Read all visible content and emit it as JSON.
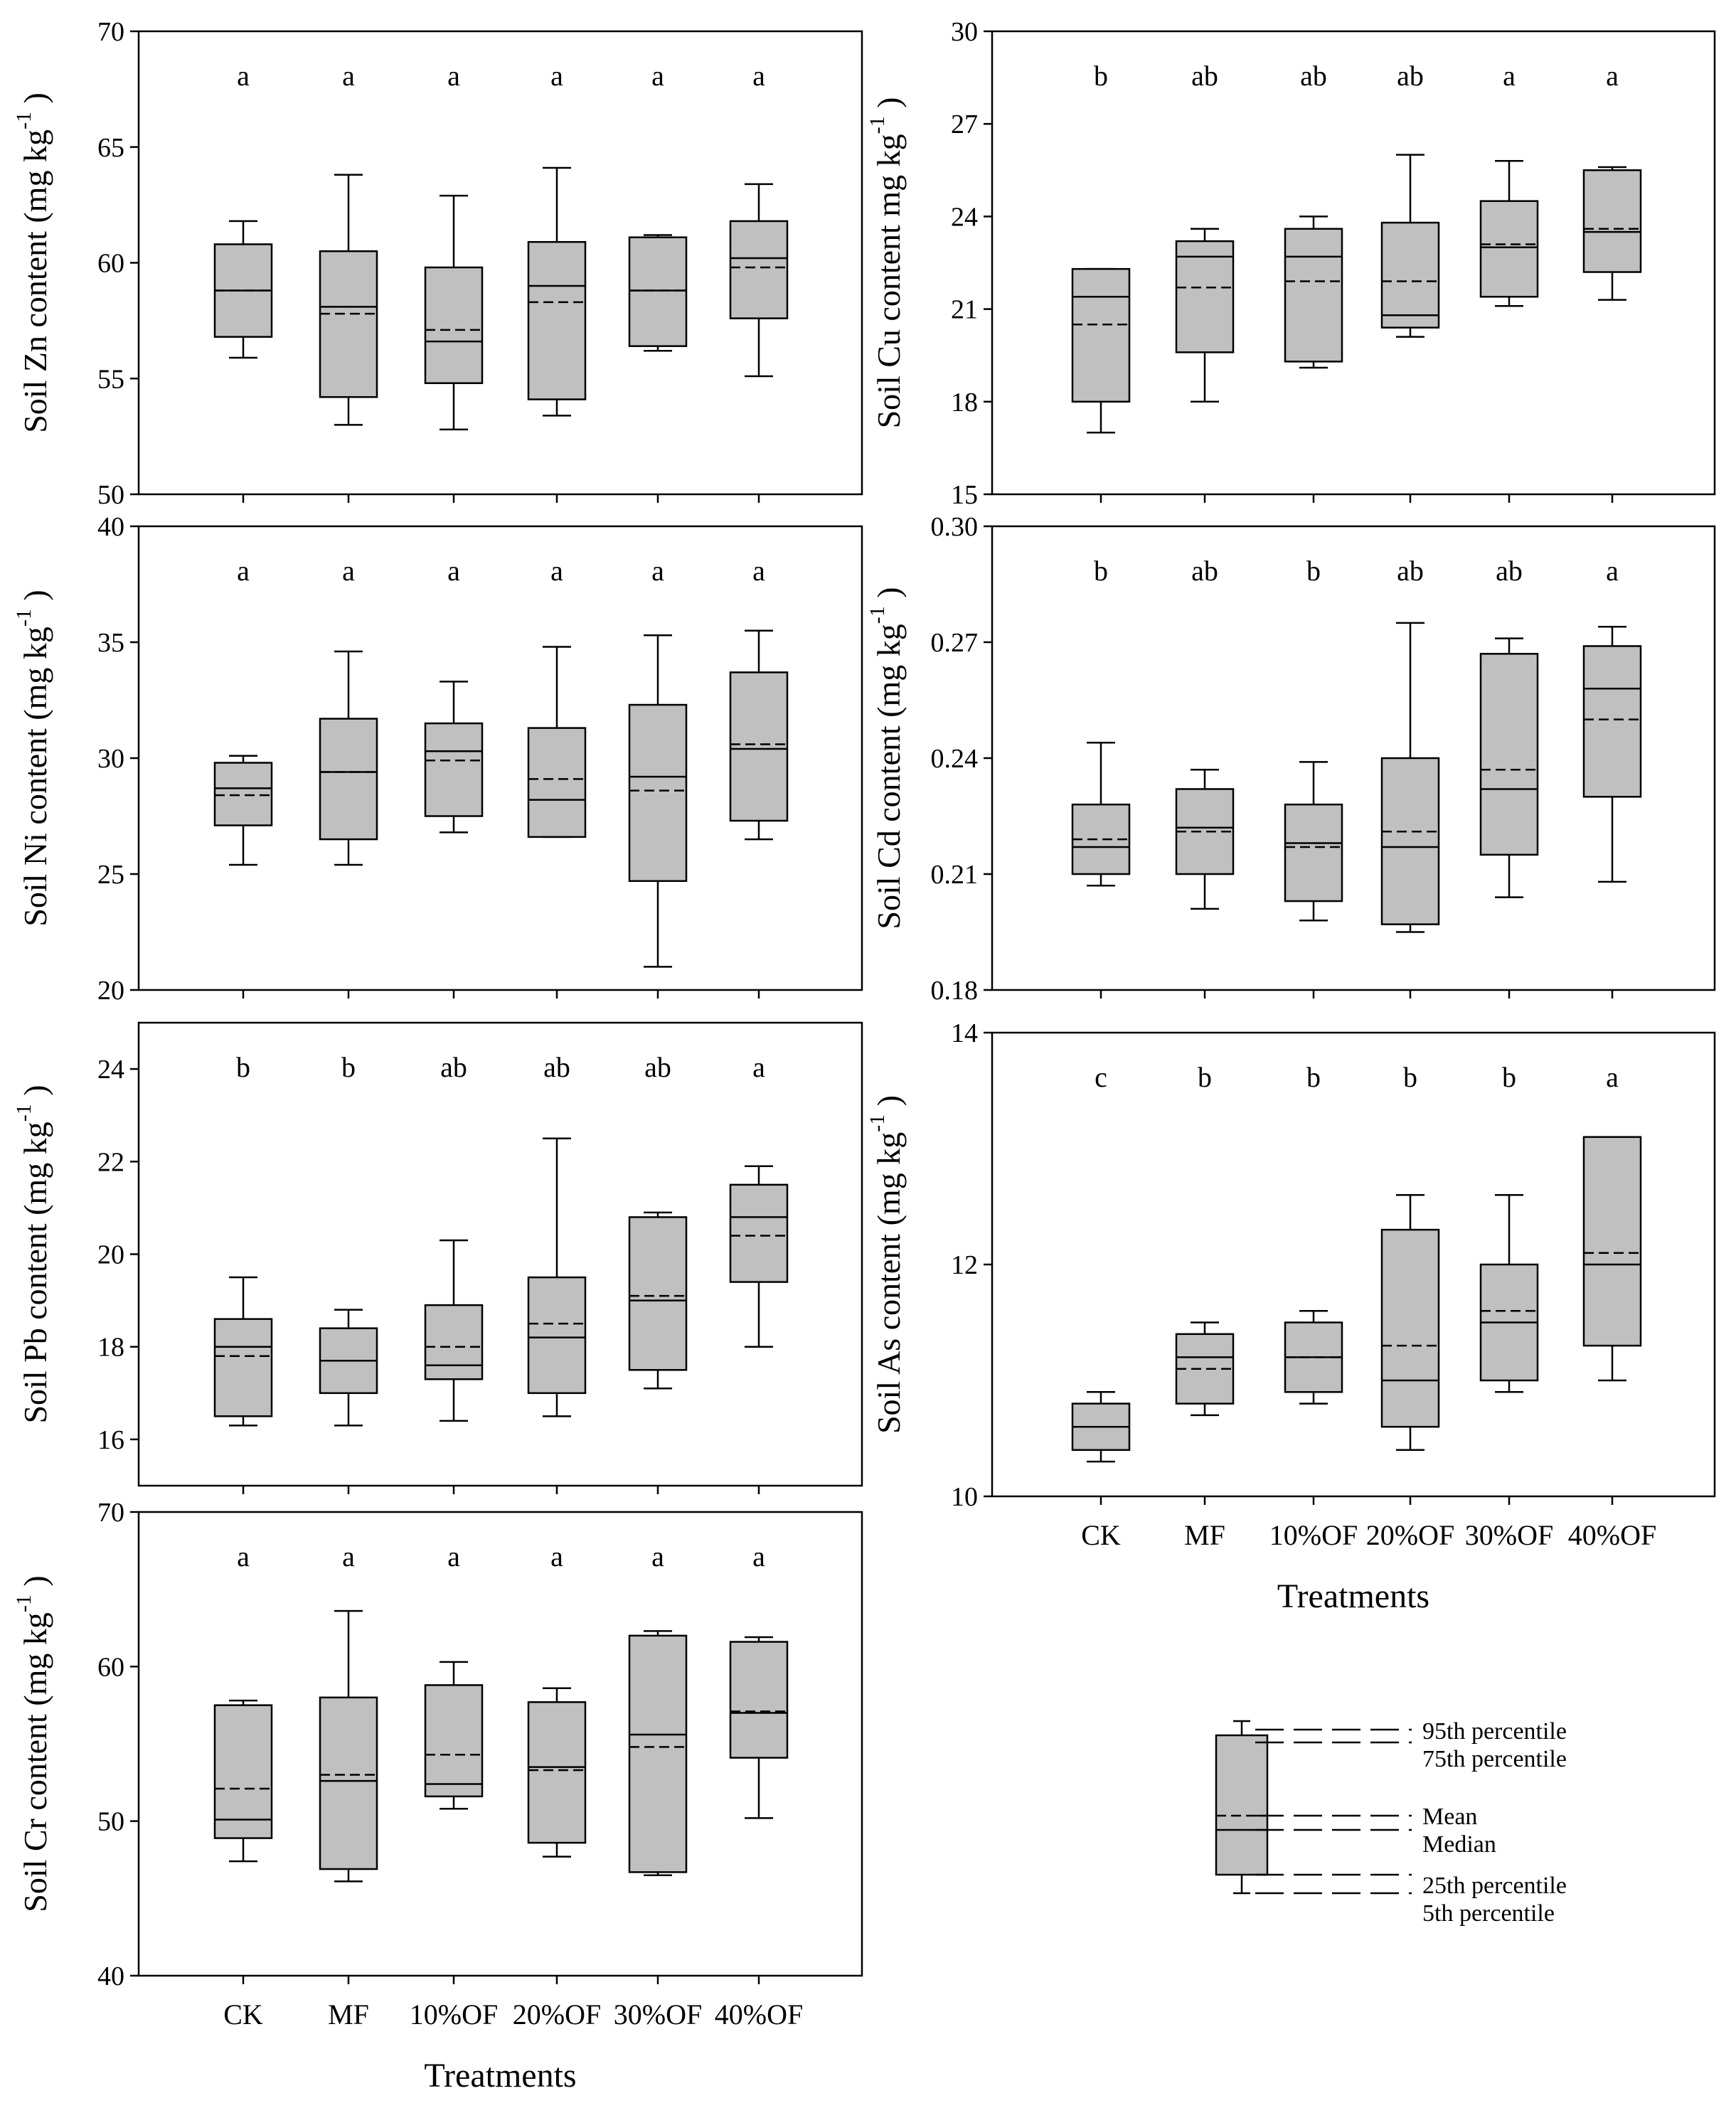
{
  "chart_data": [
    {
      "type": "box",
      "id": "zn",
      "ylabel": "Soil  Zn content (mg kg",
      "ylabel_sup": "-1",
      "ylabel_end": ")",
      "ylim": [
        50,
        70
      ],
      "yticks": [
        50,
        55,
        60,
        65,
        70
      ],
      "tick_labels": [
        "50",
        "55",
        "60",
        "65",
        "70"
      ],
      "categories": [
        "CK",
        "MF",
        "10%OF",
        "20%OF",
        "30%OF",
        "40%OF"
      ],
      "show_xlabels": false,
      "letters": [
        "a",
        "a",
        "a",
        "a",
        "a",
        "a"
      ],
      "boxes": [
        {
          "p5": 55.9,
          "p25": 56.8,
          "median": 58.8,
          "mean": 58.8,
          "p75": 60.8,
          "p95": 61.8
        },
        {
          "p5": 53.0,
          "p25": 54.2,
          "median": 58.1,
          "mean": 57.8,
          "p75": 60.5,
          "p95": 63.8
        },
        {
          "p5": 52.8,
          "p25": 54.8,
          "median": 56.6,
          "mean": 57.1,
          "p75": 59.8,
          "p95": 62.9
        },
        {
          "p5": 53.4,
          "p25": 54.1,
          "median": 59.0,
          "mean": 58.3,
          "p75": 60.9,
          "p95": 64.1
        },
        {
          "p5": 56.2,
          "p25": 56.4,
          "median": 58.8,
          "mean": 58.8,
          "p75": 61.1,
          "p95": 61.2
        },
        {
          "p5": 55.1,
          "p25": 57.6,
          "median": 60.2,
          "mean": 59.8,
          "p75": 61.8,
          "p95": 63.4
        }
      ]
    },
    {
      "type": "box",
      "id": "cu",
      "ylabel": "Soil  Cu content mg kg",
      "ylabel_sup": "-1",
      "ylabel_end": ")",
      "ylim": [
        15,
        30
      ],
      "yticks": [
        15,
        18,
        21,
        24,
        27,
        30
      ],
      "tick_labels": [
        "15",
        "18",
        "21",
        "24",
        "27",
        "30"
      ],
      "categories": [
        "CK",
        "MF",
        "10%OF",
        "20%OF",
        "30%OF",
        "40%OF"
      ],
      "show_xlabels": false,
      "letters": [
        "b",
        "ab",
        "ab",
        "ab",
        "a",
        "a"
      ],
      "boxes": [
        {
          "p5": 17.0,
          "p25": 18.0,
          "median": 21.4,
          "mean": 20.5,
          "p75": 22.3,
          "p95": 22.3
        },
        {
          "p5": 18.0,
          "p25": 19.6,
          "median": 22.7,
          "mean": 21.7,
          "p75": 23.2,
          "p95": 23.6
        },
        {
          "p5": 19.1,
          "p25": 19.3,
          "median": 22.7,
          "mean": 21.9,
          "p75": 23.6,
          "p95": 24.0
        },
        {
          "p5": 20.1,
          "p25": 20.4,
          "median": 20.8,
          "mean": 21.9,
          "p75": 23.8,
          "p95": 26.0
        },
        {
          "p5": 21.1,
          "p25": 21.4,
          "median": 23.0,
          "mean": 23.1,
          "p75": 24.5,
          "p95": 25.8
        },
        {
          "p5": 21.3,
          "p25": 22.2,
          "median": 23.5,
          "mean": 23.6,
          "p75": 25.5,
          "p95": 25.6
        }
      ]
    },
    {
      "type": "box",
      "id": "ni",
      "ylabel": "Soil  Ni content (mg kg",
      "ylabel_sup": "-1",
      "ylabel_end": ")",
      "ylim": [
        20,
        40
      ],
      "yticks": [
        20,
        25,
        30,
        35,
        40
      ],
      "tick_labels": [
        "20",
        "25",
        "30",
        "35",
        "40"
      ],
      "categories": [
        "CK",
        "MF",
        "10%OF",
        "20%OF",
        "30%OF",
        "40%OF"
      ],
      "show_xlabels": false,
      "letters": [
        "a",
        "a",
        "a",
        "a",
        "a",
        "a"
      ],
      "boxes": [
        {
          "p5": 25.4,
          "p25": 27.1,
          "median": 28.7,
          "mean": 28.4,
          "p75": 29.8,
          "p95": 30.1
        },
        {
          "p5": 25.4,
          "p25": 26.5,
          "median": 29.4,
          "mean": 29.4,
          "p75": 31.7,
          "p95": 34.6
        },
        {
          "p5": 26.8,
          "p25": 27.5,
          "median": 30.3,
          "mean": 29.9,
          "p75": 31.5,
          "p95": 33.3
        },
        {
          "p5": 26.6,
          "p25": 26.6,
          "median": 28.2,
          "mean": 29.1,
          "p75": 31.3,
          "p95": 34.8
        },
        {
          "p5": 21.0,
          "p25": 24.7,
          "median": 29.2,
          "mean": 28.6,
          "p75": 32.3,
          "p95": 35.3
        },
        {
          "p5": 26.5,
          "p25": 27.3,
          "median": 30.4,
          "mean": 30.6,
          "p75": 33.7,
          "p95": 35.5
        }
      ]
    },
    {
      "type": "box",
      "id": "cd",
      "ylabel": "Soil  Cd content (mg kg",
      "ylabel_sup": "-1",
      "ylabel_end": ")",
      "ylim": [
        0.18,
        0.3
      ],
      "yticks": [
        0.18,
        0.21,
        0.24,
        0.27,
        0.3
      ],
      "tick_labels": [
        "0.18",
        "0.21",
        "0.24",
        "0.27",
        "0.30"
      ],
      "categories": [
        "CK",
        "MF",
        "10%OF",
        "20%OF",
        "30%OF",
        "40%OF"
      ],
      "show_xlabels": false,
      "letters": [
        "b",
        "ab",
        "b",
        "ab",
        "ab",
        "a"
      ],
      "boxes": [
        {
          "p5": 0.207,
          "p25": 0.21,
          "median": 0.217,
          "mean": 0.219,
          "p75": 0.228,
          "p95": 0.244
        },
        {
          "p5": 0.201,
          "p25": 0.21,
          "median": 0.222,
          "mean": 0.221,
          "p75": 0.232,
          "p95": 0.237
        },
        {
          "p5": 0.198,
          "p25": 0.203,
          "median": 0.218,
          "mean": 0.217,
          "p75": 0.228,
          "p95": 0.239
        },
        {
          "p5": 0.195,
          "p25": 0.197,
          "median": 0.217,
          "mean": 0.221,
          "p75": 0.24,
          "p95": 0.275
        },
        {
          "p5": 0.204,
          "p25": 0.215,
          "median": 0.232,
          "mean": 0.237,
          "p75": 0.267,
          "p95": 0.271
        },
        {
          "p5": 0.208,
          "p25": 0.23,
          "median": 0.258,
          "mean": 0.25,
          "p75": 0.269,
          "p95": 0.274
        }
      ]
    },
    {
      "type": "box",
      "id": "pb",
      "ylabel": "Soil  Pb content (mg kg",
      "ylabel_sup": "-1",
      "ylabel_end": ")",
      "ylim": [
        15.0,
        25.0
      ],
      "yticks": [
        16,
        18,
        20,
        22,
        24
      ],
      "tick_labels": [
        "16",
        "18",
        "20",
        "22",
        "24"
      ],
      "categories": [
        "CK",
        "MF",
        "10%OF",
        "20%OF",
        "30%OF",
        "40%OF"
      ],
      "show_xlabels": false,
      "letters": [
        "b",
        "b",
        "ab",
        "ab",
        "ab",
        "a"
      ],
      "boxes": [
        {
          "p5": 16.3,
          "p25": 16.5,
          "median": 18.0,
          "mean": 17.8,
          "p75": 18.6,
          "p95": 19.5
        },
        {
          "p5": 16.3,
          "p25": 17.0,
          "median": 17.7,
          "mean": 17.7,
          "p75": 18.4,
          "p95": 18.8
        },
        {
          "p5": 16.4,
          "p25": 17.3,
          "median": 17.6,
          "mean": 18.0,
          "p75": 18.9,
          "p95": 20.3
        },
        {
          "p5": 16.5,
          "p25": 17.0,
          "median": 18.2,
          "mean": 18.5,
          "p75": 19.5,
          "p95": 22.5
        },
        {
          "p5": 17.1,
          "p25": 17.5,
          "median": 19.0,
          "mean": 19.1,
          "p75": 20.8,
          "p95": 20.9
        },
        {
          "p5": 18.0,
          "p25": 19.4,
          "median": 20.8,
          "mean": 20.4,
          "p75": 21.5,
          "p95": 21.9
        }
      ]
    },
    {
      "type": "box",
      "id": "as",
      "ylabel": "Soil  As content  (mg kg",
      "ylabel_sup": "-1",
      "ylabel_end": ")",
      "ylim": [
        10,
        14
      ],
      "yticks": [
        10,
        12,
        14
      ],
      "tick_labels": [
        "10",
        "12",
        "14"
      ],
      "categories": [
        "CK",
        "MF",
        "10%OF",
        "20%OF",
        "30%OF",
        "40%OF"
      ],
      "show_xlabels": true,
      "xlabel": "Treatments",
      "letters": [
        "c",
        "b",
        "b",
        "b",
        "b",
        "a"
      ],
      "boxes": [
        {
          "p5": 10.3,
          "p25": 10.4,
          "median": 10.6,
          "mean": 10.6,
          "p75": 10.8,
          "p95": 10.9
        },
        {
          "p5": 10.7,
          "p25": 10.8,
          "median": 11.2,
          "mean": 11.1,
          "p75": 11.4,
          "p95": 11.5
        },
        {
          "p5": 10.8,
          "p25": 10.9,
          "median": 11.2,
          "mean": 11.2,
          "p75": 11.5,
          "p95": 11.6
        },
        {
          "p5": 10.4,
          "p25": 10.6,
          "median": 11.0,
          "mean": 11.3,
          "p75": 12.3,
          "p95": 12.6
        },
        {
          "p5": 10.9,
          "p25": 11.0,
          "median": 11.5,
          "mean": 11.6,
          "p75": 12.0,
          "p95": 12.6
        },
        {
          "p5": 11.0,
          "p25": 11.3,
          "median": 12.0,
          "mean": 12.1,
          "p75": 13.1,
          "p95": 13.1
        }
      ]
    },
    {
      "type": "box",
      "id": "cr",
      "ylabel": "Soil Cr content (mg kg",
      "ylabel_sup": "-1",
      "ylabel_end": ")",
      "ylim": [
        40,
        70
      ],
      "yticks": [
        40,
        50,
        60,
        70
      ],
      "tick_labels": [
        "40",
        "50",
        "60",
        "70"
      ],
      "categories": [
        "CK",
        "MF",
        "10%OF",
        "20%OF",
        "30%OF",
        "40%OF"
      ],
      "show_xlabels": true,
      "xlabel": "Treatments",
      "letters": [
        "a",
        "a",
        "a",
        "a",
        "a",
        "a"
      ],
      "boxes": [
        {
          "p5": 47.4,
          "p25": 48.9,
          "median": 50.1,
          "mean": 52.1,
          "p75": 57.5,
          "p95": 57.8
        },
        {
          "p5": 46.1,
          "p25": 46.9,
          "median": 52.6,
          "mean": 53.0,
          "p75": 58.0,
          "p95": 63.6
        },
        {
          "p5": 50.8,
          "p25": 51.6,
          "median": 52.4,
          "mean": 54.3,
          "p75": 58.8,
          "p95": 60.3
        },
        {
          "p5": 47.7,
          "p25": 48.6,
          "median": 53.5,
          "mean": 53.3,
          "p75": 57.7,
          "p95": 58.6
        },
        {
          "p5": 46.5,
          "p25": 46.7,
          "median": 55.6,
          "mean": 54.8,
          "p75": 62.0,
          "p95": 62.3
        },
        {
          "p5": 50.2,
          "p25": 54.1,
          "median": 57.0,
          "mean": 57.1,
          "p75": 61.6,
          "p95": 61.9
        }
      ]
    }
  ],
  "legend": {
    "p95": "95th percentile",
    "p75": "75th percentile",
    "mean": "Mean",
    "median": "Median",
    "p25": "25th percentile",
    "p5": "5th percentile"
  }
}
